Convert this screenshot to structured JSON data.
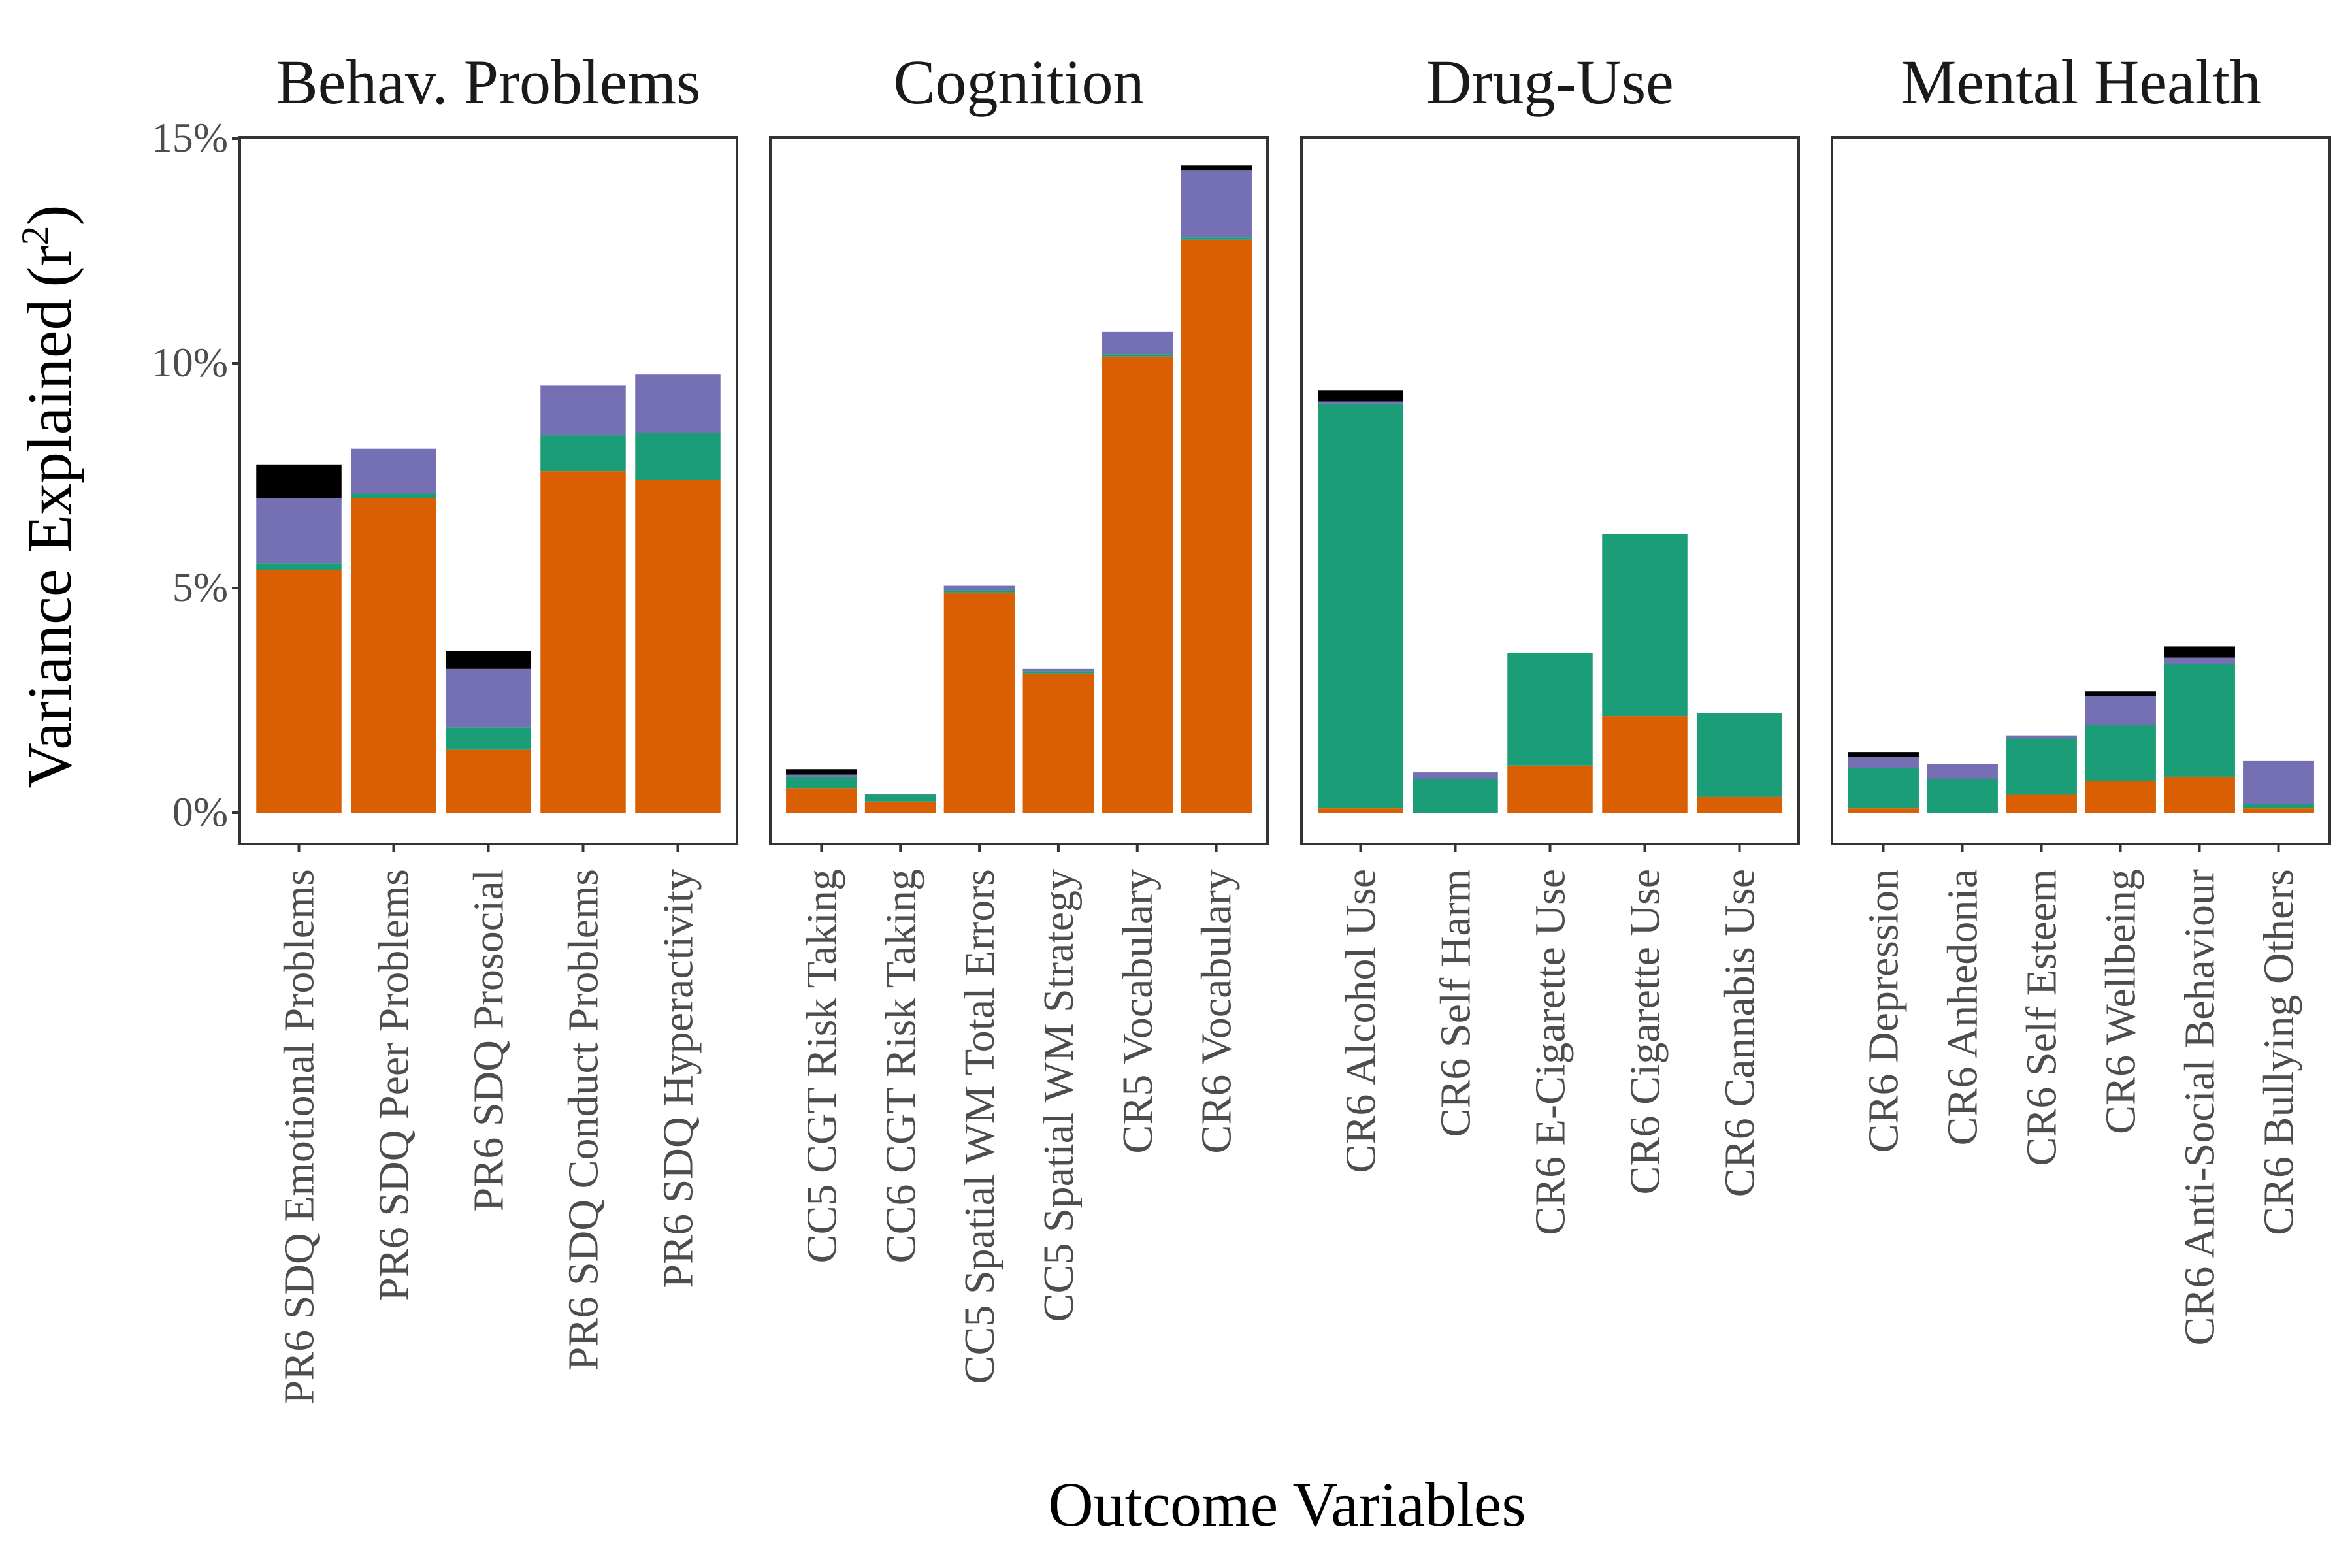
{
  "chart_data": {
    "type": "bar",
    "stacked": true,
    "xlabel": "Outcome Variables",
    "ylabel": "Variance Explained",
    "ylabel_symbol": "r",
    "ylabel_superscript": "2",
    "ylim": [
      0,
      15
    ],
    "yticks": [
      {
        "value": 0,
        "label": "0%"
      },
      {
        "value": 5,
        "label": "5%"
      },
      {
        "value": 10,
        "label": "10%"
      },
      {
        "value": 15,
        "label": "15%"
      }
    ],
    "series_colors": [
      "#d95f02",
      "#1b9e77",
      "#7570b3",
      "#000000"
    ],
    "legend": "none",
    "grid": false,
    "facets": [
      {
        "title": "Behav. Problems",
        "categories": [
          "PR6 SDQ Emotional Problems",
          "PR6 SDQ Peer Problems",
          "PR6 SDQ Prosocial",
          "PR6 SDQ Conduct Problems",
          "PR6 SDQ Hyperactivity"
        ],
        "series": [
          {
            "values": [
              5.4,
              7.0,
              1.4,
              7.6,
              7.4
            ]
          },
          {
            "values": [
              0.15,
              0.1,
              0.5,
              0.8,
              1.05
            ]
          },
          {
            "values": [
              1.45,
              1.0,
              1.3,
              1.1,
              1.3
            ]
          },
          {
            "values": [
              0.75,
              0,
              0.4,
              0,
              0
            ]
          }
        ]
      },
      {
        "title": "Cognition",
        "categories": [
          "CC5 CGT Risk Taking",
          "CC6 CGT Risk Taking",
          "CC5 Spatial WM Total Errors",
          "CC5 Spatial WM Strategy",
          "CR5 Vocabulary",
          "CR6 Vocabulary"
        ],
        "series": [
          {
            "values": [
              0.55,
              0.25,
              4.9,
              3.1,
              10.15,
              12.75
            ]
          },
          {
            "values": [
              0.25,
              0.15,
              0.05,
              0.05,
              0.05,
              0.05
            ]
          },
          {
            "values": [
              0.05,
              0.02,
              0.1,
              0.05,
              0.5,
              1.5
            ]
          },
          {
            "values": [
              0.12,
              0,
              0,
              0,
              0,
              0.1
            ]
          }
        ]
      },
      {
        "title": "Drug-Use",
        "categories": [
          "CR6 Alcohol Use",
          "CR6 Self Harm",
          "CR6 E-Cigarette Use",
          "CR6 Cigarette Use",
          "CR6 Cannabis Use"
        ],
        "series": [
          {
            "values": [
              0.1,
              0,
              1.05,
              2.15,
              0.35
            ]
          },
          {
            "values": [
              9.0,
              0.75,
              2.5,
              4.05,
              1.87
            ]
          },
          {
            "values": [
              0.05,
              0.15,
              0,
              0,
              0
            ]
          },
          {
            "values": [
              0.25,
              0,
              0,
              0,
              0
            ]
          }
        ]
      },
      {
        "title": "Mental Health",
        "categories": [
          "CR6 Depression",
          "CR6 Anhedonia",
          "CR6 Self Esteem",
          "CR6 Wellbeing",
          "CR6 Anti-Social Behaviour",
          "CR6 Bullying Others"
        ],
        "series": [
          {
            "values": [
              0.1,
              0,
              0.4,
              0.7,
              0.8,
              0.1
            ]
          },
          {
            "values": [
              0.9,
              0.75,
              1.25,
              1.25,
              2.5,
              0.1
            ]
          },
          {
            "values": [
              0.25,
              0.33,
              0.07,
              0.65,
              0.15,
              0.95
            ]
          },
          {
            "values": [
              0.1,
              0,
              0,
              0.1,
              0.25,
              0
            ]
          }
        ]
      }
    ]
  }
}
